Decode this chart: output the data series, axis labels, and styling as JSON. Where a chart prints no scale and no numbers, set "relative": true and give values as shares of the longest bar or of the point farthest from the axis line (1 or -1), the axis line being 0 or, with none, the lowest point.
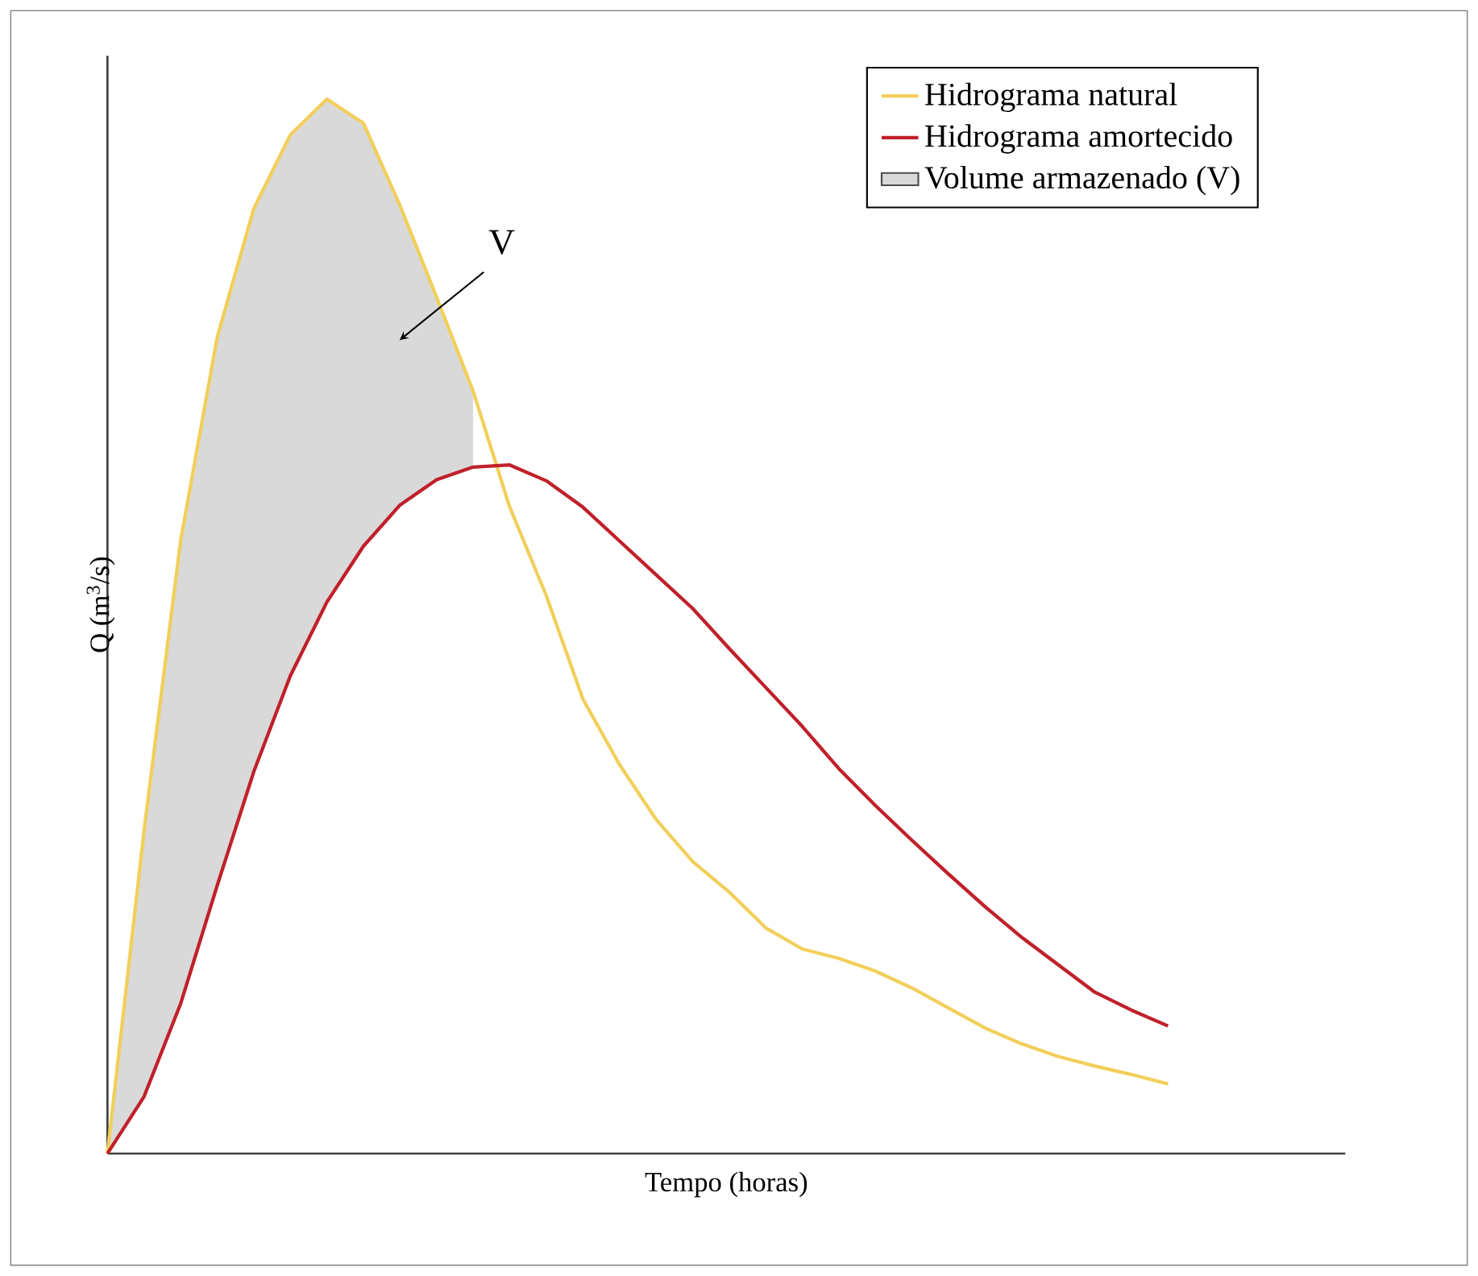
{
  "chart_data": {
    "type": "line",
    "relative": true,
    "xlabel": "Tempo (horas)",
    "ylabel": "Q (m$^{3}$/s)",
    "tick_labels": false,
    "legend": "top right",
    "categories": [
      null,
      null,
      null,
      null,
      null,
      null,
      null,
      null,
      null,
      null,
      null,
      null,
      null,
      null,
      null,
      null,
      null,
      null,
      null,
      null,
      null,
      null,
      null,
      null,
      null,
      null,
      null,
      null,
      null,
      null
    ],
    "series": [
      {
        "name": "Hidrograma natural",
        "color": "#f2cf5b",
        "values": [
          0,
          0.306,
          0.581,
          0.774,
          0.896,
          0.966,
          1,
          0.977,
          0.899,
          0.812,
          0.723,
          0.613,
          0.529,
          0.431,
          0.369,
          0.317,
          0.277,
          0.248,
          0.214,
          0.194,
          0.185,
          0.173,
          0.157,
          0.138,
          0.119,
          0.104,
          0.092,
          0.083,
          0.075,
          0.066
        ]
      },
      {
        "name": "Hidrograma amortecido",
        "color": "#c0202a",
        "values": [
          0,
          0.054,
          0.142,
          0.254,
          0.362,
          0.453,
          0.523,
          0.576,
          0.615,
          0.639,
          0.651,
          0.653,
          0.638,
          0.613,
          0.581,
          0.549,
          0.517,
          0.479,
          0.442,
          0.405,
          0.365,
          0.33,
          0.297,
          0.265,
          0.234,
          0.205,
          0.179,
          0.153,
          0.136,
          0.121
        ]
      },
      {
        "name": "Volume armazenado (V)",
        "type": "area",
        "color": "#d9d9d9",
        "values": [
          0,
          0.306,
          0.581,
          0.774,
          0.896,
          0.966,
          1,
          0.977,
          0.899,
          0.812,
          0.723,
          null,
          null,
          null,
          null,
          null,
          null,
          null,
          null,
          null,
          null,
          null,
          null,
          null,
          null,
          null,
          null,
          null,
          null,
          null
        ]
      }
    ],
    "annotations": [
      "V"
    ]
  }
}
